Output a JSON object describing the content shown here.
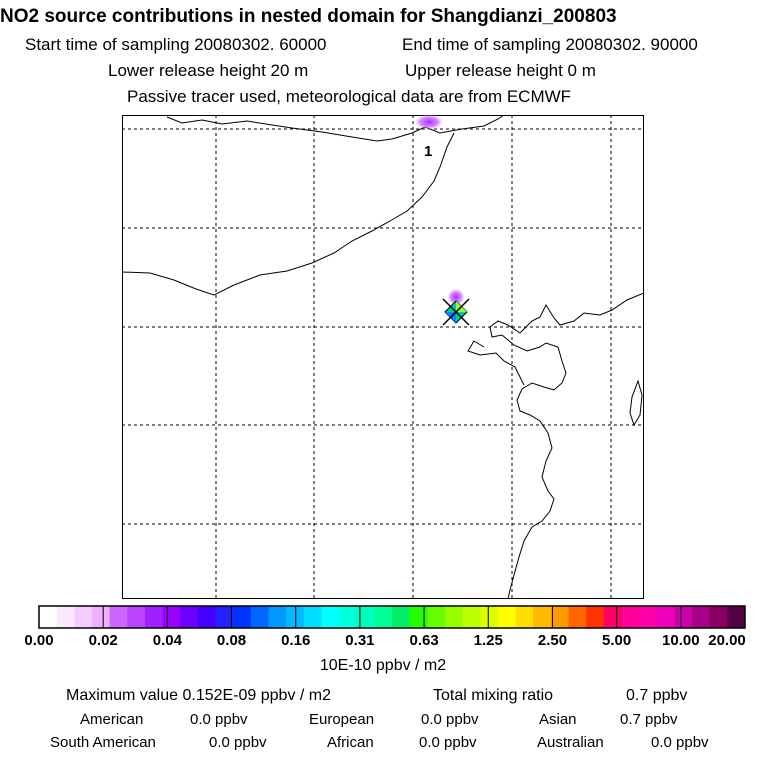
{
  "title": "NO2 source contributions in nested domain for Shangdianzi_200803",
  "header": {
    "start_label": "Start time of sampling 20080302. 60000",
    "end_label": "End time of sampling 20080302. 90000",
    "lower_label": "Lower release height   20 m",
    "upper_label": "Upper release height    0 m",
    "tracer_note": "Passive tracer used, meteorological data are from ECMWF"
  },
  "map": {
    "marker_label": "1",
    "colors": {
      "grid": "#000000",
      "coast": "#000000",
      "plume": "#cc33ff",
      "station_marker": "#00cc99"
    }
  },
  "colorbar": {
    "tick_labels": [
      "0.00",
      "0.02",
      "0.04",
      "0.08",
      "0.16",
      "0.31",
      "0.63",
      "1.25",
      "2.50",
      "5.00",
      "10.00",
      "20.00"
    ],
    "units": "10E-10 ppbv / m2",
    "colors": [
      "#ffffff",
      "#fbe8ff",
      "#f5ccff",
      "#eeb0ff",
      "#cc66ff",
      "#bb44ff",
      "#a020ff",
      "#9900ff",
      "#6a00ff",
      "#4400ff",
      "#2222ff",
      "#0033ff",
      "#0066ff",
      "#0099ff",
      "#00bbff",
      "#00ddff",
      "#00ffff",
      "#00ffdd",
      "#00ffbb",
      "#00ff99",
      "#00ee66",
      "#22ff00",
      "#66ff00",
      "#99ff00",
      "#bbff00",
      "#ddff00",
      "#ffff00",
      "#ffdd00",
      "#ffbb00",
      "#ff9900",
      "#ff6600",
      "#ff3300",
      "#ff0066",
      "#ff0099",
      "#ff00aa",
      "#ee00bb",
      "#cc00aa",
      "#aa0088",
      "#880066",
      "#550044"
    ]
  },
  "stats": {
    "max_label": "Maximum value  0.152E-09 ppbv / m2",
    "total_label": "Total mixing ratio",
    "total_value": "0.7 ppbv",
    "regions": [
      {
        "name": "American",
        "value": "0.0 ppbv"
      },
      {
        "name": "European",
        "value": "0.0 ppbv"
      },
      {
        "name": "Asian",
        "value": "0.7 ppbv"
      },
      {
        "name": "South American",
        "value": "0.0 ppbv"
      },
      {
        "name": "African",
        "value": "0.0 ppbv"
      },
      {
        "name": "Australian",
        "value": "0.0 ppbv"
      }
    ]
  }
}
